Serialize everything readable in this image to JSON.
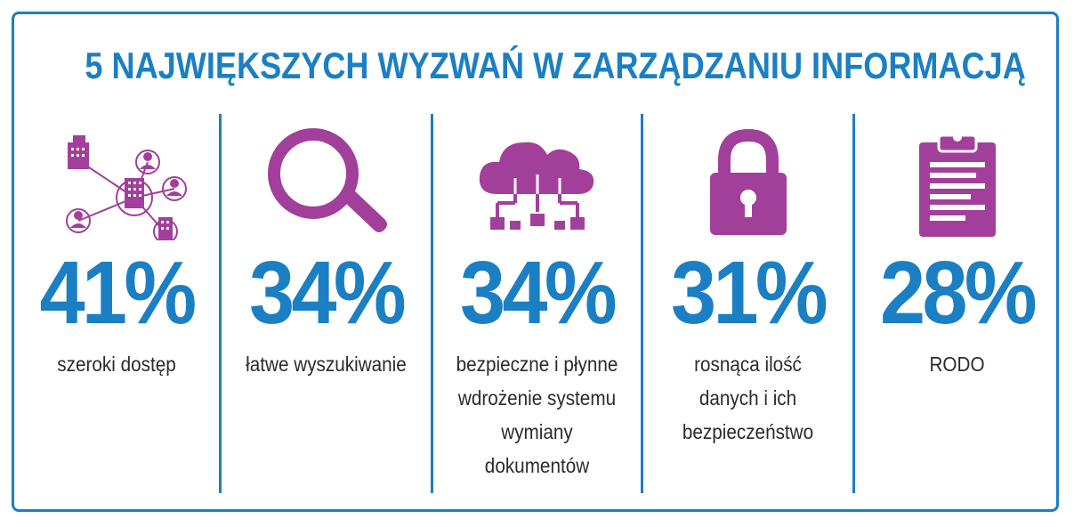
{
  "title": "5 NAJWIĘKSZYCH WYZWAŃ W ZARZĄDZANIU INFORMACJĄ",
  "colors": {
    "accent": "#1b7fc4",
    "icon": "#a23f9b",
    "text": "#2b2b2b"
  },
  "items": [
    {
      "icon": "network-icon",
      "percent": "41%",
      "label": "szeroki dostęp"
    },
    {
      "icon": "magnifier-icon",
      "percent": "34%",
      "label": "łatwe wyszukiwanie"
    },
    {
      "icon": "cloud-network-icon",
      "percent": "34%",
      "label": "bezpieczne i płynne\nwdrożenie systemu\nwymiany\ndokumentów"
    },
    {
      "icon": "padlock-icon",
      "percent": "31%",
      "label": "rosnąca ilość\ndanych i ich\nbezpieczeństwo"
    },
    {
      "icon": "clipboard-icon",
      "percent": "28%",
      "label": "RODO"
    }
  ]
}
